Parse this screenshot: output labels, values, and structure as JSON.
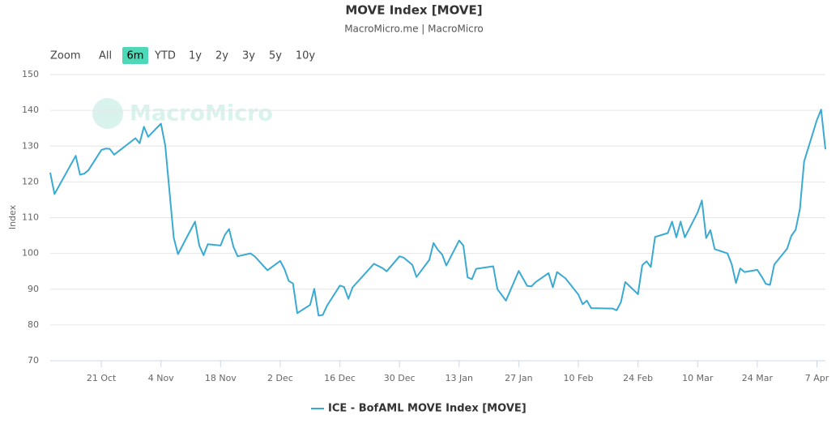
{
  "chart_data": {
    "type": "line",
    "title": "MOVE Index [MOVE]",
    "subtitle": "MacroMicro.me | MacroMicro",
    "watermark": "MacroMicro",
    "y_label": "Index",
    "range_selector": {
      "label": "Zoom",
      "buttons": [
        "All",
        "6m",
        "YTD",
        "1y",
        "2y",
        "3y",
        "5y",
        "10y"
      ],
      "selected": "6m"
    },
    "x": [
      "9 Oct",
      "10 Oct",
      "15 Oct",
      "16 Oct",
      "17 Oct",
      "18 Oct",
      "21 Oct",
      "22 Oct",
      "23 Oct",
      "24 Oct",
      "29 Oct",
      "30 Oct",
      "31 Oct",
      "1 Nov",
      "4 Nov",
      "5 Nov",
      "7 Nov",
      "8 Nov",
      "12 Nov",
      "13 Nov",
      "14 Nov",
      "15 Nov",
      "18 Nov",
      "19 Nov",
      "20 Nov",
      "21 Nov",
      "22 Nov",
      "25 Nov",
      "26 Nov",
      "29 Nov",
      "2 Dec",
      "3 Dec",
      "4 Dec",
      "5 Dec",
      "6 Dec",
      "9 Dec",
      "10 Dec",
      "11 Dec",
      "12 Dec",
      "13 Dec",
      "16 Dec",
      "17 Dec",
      "18 Dec",
      "19 Dec",
      "24 Dec",
      "26 Dec",
      "27 Dec",
      "30 Dec",
      "31 Dec",
      "2 Jan",
      "3 Jan",
      "6 Jan",
      "7 Jan",
      "8 Jan",
      "9 Jan",
      "10 Jan",
      "13 Jan",
      "14 Jan",
      "15 Jan",
      "16 Jan",
      "17 Jan",
      "21 Jan",
      "22 Jan",
      "24 Jan",
      "27 Jan",
      "29 Jan",
      "30 Jan",
      "31 Jan",
      "3 Feb",
      "4 Feb",
      "5 Feb",
      "7 Feb",
      "10 Feb",
      "11 Feb",
      "12 Feb",
      "13 Feb",
      "18 Feb",
      "19 Feb",
      "20 Feb",
      "21 Feb",
      "24 Feb",
      "25 Feb",
      "26 Feb",
      "27 Feb",
      "28 Feb",
      "3 Mar",
      "4 Mar",
      "5 Mar",
      "6 Mar",
      "7 Mar",
      "10 Mar",
      "11 Mar",
      "12 Mar",
      "13 Mar",
      "14 Mar",
      "17 Mar",
      "18 Mar",
      "19 Mar",
      "20 Mar",
      "21 Mar",
      "24 Mar",
      "25 Mar",
      "26 Mar",
      "27 Mar",
      "28 Mar",
      "31 Mar",
      "1 Apr",
      "2 Apr",
      "3 Apr",
      "4 Apr",
      "7 Apr",
      "8 Apr",
      "9 Apr"
    ],
    "series": [
      {
        "name": "ICE - BofAML MOVE Index [MOVE]",
        "color": "#3aaad2",
        "values": [
          122.6,
          116.6,
          127.3,
          122,
          122.3,
          123.3,
          128.9,
          129.3,
          129.2,
          127.6,
          132.2,
          130.8,
          135.4,
          132.6,
          136.3,
          130.2,
          104.4,
          99.8,
          108.9,
          102.2,
          99.5,
          102.6,
          102.2,
          105.2,
          106.8,
          101.9,
          99.2,
          100,
          99.2,
          95.3,
          97.9,
          95.6,
          92.3,
          91.6,
          83.3,
          85.6,
          90.1,
          82.6,
          82.8,
          85.4,
          91,
          90.6,
          87.3,
          90.5,
          97.1,
          95.9,
          95,
          99.2,
          98.8,
          96.8,
          93.4,
          98.2,
          102.9,
          101,
          99.7,
          96.6,
          103.6,
          102.2,
          93.3,
          92.8,
          95.7,
          96.4,
          90,
          86.8,
          95.1,
          90.9,
          90.8,
          92,
          94.5,
          90.5,
          94.8,
          93,
          88.5,
          85.8,
          86.8,
          84.7,
          84.6,
          84.1,
          86.4,
          92,
          88.6,
          96.7,
          97.8,
          96.2,
          104.6,
          105.7,
          108.9,
          104.5,
          108.9,
          104.5,
          111.5,
          114.8,
          104.3,
          106.5,
          101.2,
          100,
          97,
          91.7,
          95.8,
          94.8,
          95.4,
          93.6,
          91.5,
          91.2,
          96.9,
          101.3,
          104.9,
          106.6,
          112.4,
          125.7,
          137.3,
          140.2,
          129.1
        ]
      }
    ],
    "xlim": [
      "9 Oct",
      "9 Apr"
    ],
    "xticks": [
      "21 Oct",
      "4 Nov",
      "18 Nov",
      "2 Dec",
      "16 Dec",
      "30 Dec",
      "13 Jan",
      "27 Jan",
      "10 Feb",
      "24 Feb",
      "10 Mar",
      "24 Mar",
      "7 Apr"
    ],
    "ylim": [
      70,
      150
    ],
    "yticks": [
      70,
      80,
      90,
      100,
      110,
      120,
      130,
      140,
      150
    ],
    "grid": true
  }
}
